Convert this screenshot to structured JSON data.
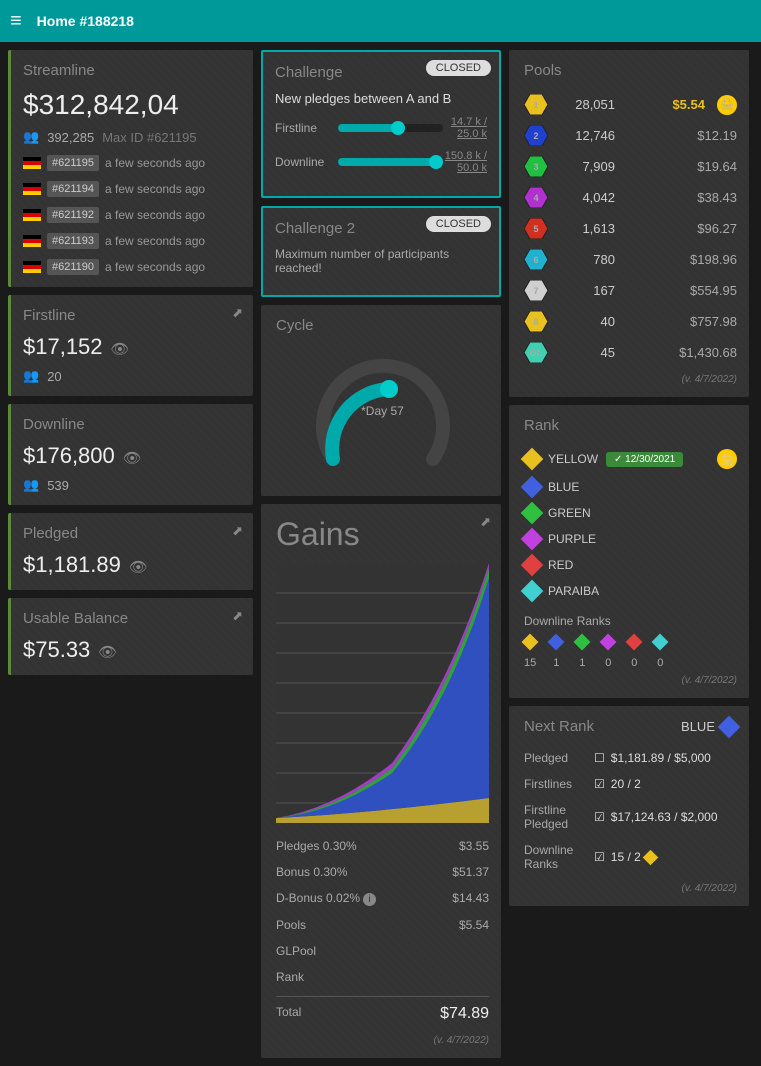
{
  "topbar": {
    "title": "Home #188218"
  },
  "streamline": {
    "title": "Streamline",
    "value": "$312,842,04",
    "count": "392,285",
    "maxid": "Max ID #621195",
    "items": [
      {
        "id": "#621195",
        "time": "a few seconds ago"
      },
      {
        "id": "#621194",
        "time": "a few seconds ago"
      },
      {
        "id": "#621192",
        "time": "a few seconds ago"
      },
      {
        "id": "#621193",
        "time": "a few seconds ago"
      },
      {
        "id": "#621190",
        "time": "a few seconds ago"
      }
    ]
  },
  "firstline": {
    "title": "Firstline",
    "value": "$17,152",
    "count": "20"
  },
  "downline": {
    "title": "Downline",
    "value": "$176,800",
    "count": "539"
  },
  "pledged": {
    "title": "Pledged",
    "value": "$1,181.89"
  },
  "usable": {
    "title": "Usable Balance",
    "value": "$75.33"
  },
  "challenge": {
    "title": "Challenge",
    "status": "CLOSED",
    "desc": "New pledges between A and B",
    "sliders": [
      {
        "label": "Firstline",
        "cur": "14.7 k",
        "max": "25.0 k",
        "pct": 58
      },
      {
        "label": "Downline",
        "cur": "150.8 k",
        "max": "50.0 k",
        "pct": 100
      }
    ]
  },
  "challenge2": {
    "title": "Challenge 2",
    "status": "CLOSED",
    "desc": "Maximum number of participants reached!"
  },
  "cycle": {
    "title": "Cycle",
    "day": "*Day 57",
    "pct": 48
  },
  "gains": {
    "title": "Gains",
    "rows": [
      {
        "label": "Pledges 0.30%",
        "val": "$3.55"
      },
      {
        "label": "Bonus 0.30%",
        "val": "$51.37"
      },
      {
        "label": "D-Bonus 0.02%",
        "val": "$14.43",
        "info": true
      },
      {
        "label": "Pools",
        "val": "$5.54"
      },
      {
        "label": "GLPool",
        "val": ""
      },
      {
        "label": "Rank",
        "val": ""
      }
    ],
    "total_label": "Total",
    "total": "$74.89",
    "version": "(v. 4/7/2022)",
    "chart_colors": {
      "bottom": "#b8a030",
      "main": "#3050c0",
      "mid": "#30a040",
      "top": "#a040c0"
    }
  },
  "pools": {
    "title": "Pools",
    "highlight_val": "$5.54",
    "rows": [
      {
        "n": "1",
        "color": "#e8c020",
        "count": "28,051",
        "val": "$5.54",
        "highlight": true
      },
      {
        "n": "2",
        "color": "#2040d0",
        "count": "12,746",
        "val": "$12.19"
      },
      {
        "n": "3",
        "color": "#20c040",
        "count": "7,909",
        "val": "$19.64"
      },
      {
        "n": "4",
        "color": "#b030d0",
        "count": "4,042",
        "val": "$38.43"
      },
      {
        "n": "5",
        "color": "#d03020",
        "count": "1,613",
        "val": "$96.27"
      },
      {
        "n": "6",
        "color": "#20b0d0",
        "count": "780",
        "val": "$198.96"
      },
      {
        "n": "7",
        "color": "#d0d0d0",
        "count": "167",
        "val": "$554.95"
      },
      {
        "n": "8",
        "color": "#e8c020",
        "count": "40",
        "val": "$757.98"
      },
      {
        "n": "GL",
        "color": "#40d0b0",
        "count": "45",
        "val": "$1,430.68"
      }
    ],
    "version": "(v. 4/7/2022)"
  },
  "rank": {
    "title": "Rank",
    "items": [
      {
        "name": "YELLOW",
        "color": "#e8c020",
        "date": "✓ 12/30/2021",
        "active": true
      },
      {
        "name": "BLUE",
        "color": "#4060e0"
      },
      {
        "name": "GREEN",
        "color": "#30c040"
      },
      {
        "name": "PURPLE",
        "color": "#c040e0"
      },
      {
        "name": "RED",
        "color": "#e04040"
      },
      {
        "name": "PARAIBA",
        "color": "#40d0d0"
      }
    ],
    "downline_title": "Downline Ranks",
    "downline": [
      {
        "color": "#e8c020",
        "n": "15"
      },
      {
        "color": "#4060e0",
        "n": "1"
      },
      {
        "color": "#30c040",
        "n": "1"
      },
      {
        "color": "#c040e0",
        "n": "0"
      },
      {
        "color": "#e04040",
        "n": "0"
      },
      {
        "color": "#40d0d0",
        "n": "0"
      }
    ],
    "version": "(v. 4/7/2022)"
  },
  "nextrank": {
    "title": "Next Rank",
    "target": "BLUE",
    "target_color": "#4060e0",
    "rows": [
      {
        "label": "Pledged",
        "checked": false,
        "val": "$1,181.89 / $5,000"
      },
      {
        "label": "Firstlines",
        "checked": true,
        "val": "20 / 2"
      },
      {
        "label": "Firstline Pledged",
        "checked": true,
        "val": "$17,124.63 / $2,000"
      },
      {
        "label": "Downline Ranks",
        "checked": true,
        "val": "15 / 2",
        "gem": "#e8c020"
      }
    ],
    "version": "(v. 4/7/2022)"
  }
}
